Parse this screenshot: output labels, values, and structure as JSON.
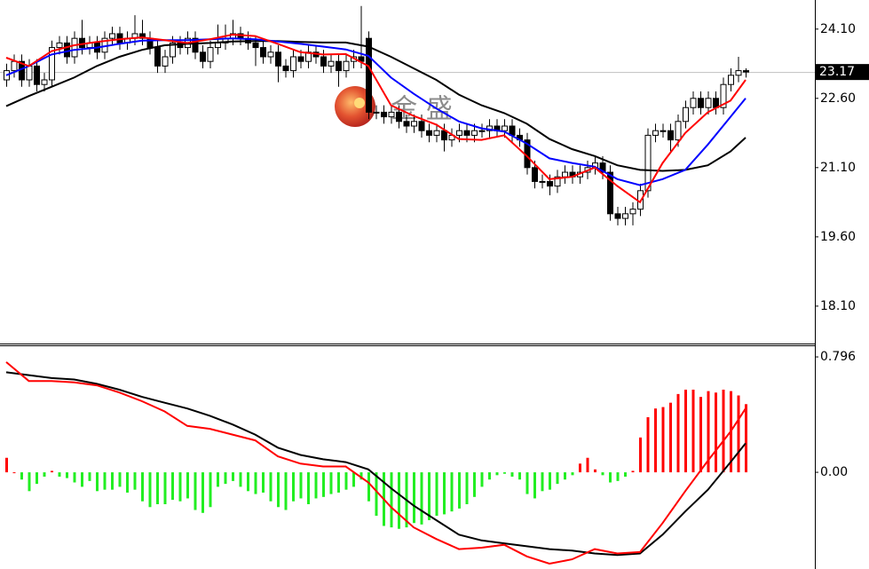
{
  "chart_data": [
    {
      "type": "candlestick",
      "watermark": "金 盛",
      "open": [
        23.0,
        23.2,
        23.4,
        23.0,
        23.3,
        22.9,
        23.0,
        23.7,
        23.8,
        23.5,
        23.9,
        23.7,
        23.8,
        23.6,
        23.9,
        24.0,
        23.8,
        23.9,
        24.0,
        23.9,
        23.7,
        23.3,
        23.5,
        23.8,
        23.7,
        23.9,
        23.6,
        23.4,
        23.7,
        23.8,
        23.9,
        24.0,
        23.9,
        23.8,
        23.7,
        23.5,
        23.6,
        23.3,
        23.2,
        23.5,
        23.4,
        23.6,
        23.5,
        23.3,
        23.4,
        23.2,
        23.4,
        23.5,
        23.9,
        22.3,
        22.3,
        22.2,
        22.3,
        22.1,
        22.0,
        22.1,
        21.9,
        21.8,
        21.9,
        21.7,
        21.8,
        21.9,
        21.8,
        21.9,
        21.9,
        22.0,
        21.9,
        22.0,
        21.8,
        21.7,
        21.1,
        20.8,
        20.8,
        20.7,
        20.9,
        21.0,
        20.9,
        21.0,
        21.1,
        21.2,
        21.0,
        20.1,
        20.0,
        20.1,
        20.2,
        20.6,
        21.8,
        21.9,
        21.9,
        21.7,
        22.1,
        22.4,
        22.6,
        22.4,
        22.6,
        22.4,
        22.9,
        23.1,
        23.2
      ],
      "high": [
        23.35,
        23.55,
        23.55,
        23.45,
        23.45,
        23.15,
        23.85,
        23.95,
        23.95,
        24.05,
        24.3,
        23.95,
        23.95,
        24.05,
        24.15,
        24.15,
        24.05,
        24.4,
        24.3,
        24.05,
        23.85,
        23.65,
        23.95,
        23.95,
        24.05,
        24.05,
        23.75,
        23.85,
        24.2,
        24.2,
        24.3,
        24.15,
        24.05,
        23.95,
        23.85,
        23.75,
        23.75,
        23.45,
        23.65,
        23.65,
        23.75,
        23.75,
        23.65,
        23.55,
        23.55,
        23.55,
        23.65,
        24.6,
        24.05,
        22.45,
        22.45,
        22.45,
        22.45,
        22.25,
        22.25,
        22.25,
        22.05,
        22.05,
        22.05,
        21.95,
        22.05,
        22.05,
        22.05,
        22.05,
        22.15,
        22.15,
        22.15,
        22.15,
        21.95,
        21.85,
        21.25,
        20.95,
        20.95,
        21.05,
        21.15,
        21.15,
        21.15,
        21.25,
        21.35,
        21.35,
        21.15,
        20.25,
        20.25,
        20.35,
        20.75,
        21.95,
        22.05,
        22.05,
        22.05,
        22.25,
        22.55,
        22.75,
        22.75,
        22.75,
        22.75,
        23.05,
        23.25,
        23.5,
        23.25
      ],
      "low": [
        22.85,
        23.05,
        22.85,
        22.85,
        22.75,
        22.75,
        22.85,
        23.55,
        23.35,
        23.35,
        23.55,
        23.55,
        23.45,
        23.45,
        23.75,
        23.65,
        23.65,
        23.75,
        23.75,
        23.55,
        23.15,
        23.15,
        23.35,
        23.55,
        23.55,
        23.45,
        23.25,
        23.25,
        23.55,
        23.65,
        23.75,
        23.75,
        23.65,
        23.3,
        23.35,
        23.35,
        22.95,
        23.05,
        23.05,
        23.25,
        23.25,
        23.35,
        23.15,
        23.15,
        22.85,
        23.05,
        23.25,
        23.25,
        22.15,
        22.15,
        22.05,
        22.05,
        21.95,
        21.85,
        21.85,
        21.75,
        21.65,
        21.65,
        21.45,
        21.55,
        21.65,
        21.65,
        21.65,
        21.75,
        21.75,
        21.75,
        21.75,
        21.65,
        21.55,
        20.95,
        20.65,
        20.65,
        20.5,
        20.55,
        20.75,
        20.75,
        20.75,
        20.85,
        20.95,
        20.85,
        19.95,
        19.85,
        19.85,
        19.85,
        20.05,
        20.45,
        21.65,
        21.75,
        21.45,
        21.55,
        21.95,
        22.25,
        22.25,
        22.25,
        22.25,
        22.25,
        22.75,
        22.95,
        23.05
      ],
      "close": [
        23.2,
        23.4,
        23.0,
        23.3,
        22.9,
        23.0,
        23.7,
        23.8,
        23.5,
        23.9,
        23.7,
        23.8,
        23.6,
        23.9,
        24.0,
        23.8,
        23.9,
        24.0,
        23.9,
        23.7,
        23.3,
        23.5,
        23.8,
        23.7,
        23.9,
        23.6,
        23.4,
        23.7,
        23.8,
        23.9,
        24.0,
        23.9,
        23.8,
        23.7,
        23.5,
        23.6,
        23.3,
        23.2,
        23.5,
        23.4,
        23.6,
        23.5,
        23.3,
        23.4,
        23.2,
        23.4,
        23.5,
        23.4,
        22.3,
        22.3,
        22.2,
        22.3,
        22.1,
        22.0,
        22.1,
        21.9,
        21.8,
        21.9,
        21.7,
        21.8,
        21.9,
        21.8,
        21.9,
        21.9,
        22.0,
        21.9,
        22.0,
        21.8,
        21.7,
        21.1,
        20.8,
        20.8,
        20.7,
        20.9,
        21.0,
        20.9,
        21.0,
        21.1,
        21.2,
        21.0,
        20.1,
        20.0,
        20.1,
        20.2,
        20.6,
        21.8,
        21.9,
        21.9,
        21.7,
        22.1,
        22.4,
        22.6,
        22.4,
        22.6,
        22.4,
        22.9,
        23.1,
        23.2,
        23.17
      ],
      "up_color": "#ffffff",
      "down_color": "#000000",
      "line_x": [
        0,
        3,
        6,
        9,
        12,
        15,
        18,
        21,
        24,
        27,
        30,
        33,
        36,
        39,
        42,
        45,
        48,
        51,
        54,
        57,
        60,
        63,
        66,
        69,
        72,
        75,
        78,
        81,
        84,
        87,
        90,
        93,
        96,
        98
      ],
      "series": [
        {
          "color": "#000000",
          "values": [
            22.43,
            22.65,
            22.85,
            23.05,
            23.3,
            23.5,
            23.65,
            23.75,
            23.78,
            23.8,
            23.83,
            23.84,
            23.84,
            23.82,
            23.81,
            23.81,
            23.72,
            23.5,
            23.25,
            23.0,
            22.68,
            22.45,
            22.28,
            22.05,
            21.72,
            21.5,
            21.35,
            21.15,
            21.05,
            21.03,
            21.05,
            21.15,
            21.45,
            21.75
          ]
        },
        {
          "color": "#0000ff",
          "values": [
            23.1,
            23.3,
            23.55,
            23.65,
            23.7,
            23.78,
            23.85,
            23.86,
            23.86,
            23.88,
            23.9,
            23.88,
            23.83,
            23.78,
            23.72,
            23.66,
            23.52,
            23.05,
            22.7,
            22.38,
            22.1,
            21.95,
            21.88,
            21.62,
            21.3,
            21.2,
            21.12,
            20.85,
            20.72,
            20.85,
            21.05,
            21.6,
            22.2,
            22.6
          ]
        },
        {
          "color": "#ff0000",
          "values": [
            23.48,
            23.3,
            23.62,
            23.75,
            23.82,
            23.88,
            23.92,
            23.86,
            23.8,
            23.88,
            23.98,
            23.95,
            23.78,
            23.6,
            23.55,
            23.56,
            23.3,
            22.45,
            22.22,
            22.03,
            21.72,
            21.7,
            21.8,
            21.35,
            20.85,
            20.9,
            21.1,
            20.7,
            20.35,
            21.2,
            21.85,
            22.3,
            22.55,
            23.0
          ]
        }
      ],
      "ylim": [
        17.29,
        24.73
      ],
      "yticks": [
        {
          "value": 24.1,
          "label": "24.10"
        },
        {
          "value": 22.6,
          "label": "22.60"
        },
        {
          "value": 21.1,
          "label": "21.10"
        },
        {
          "value": 19.6,
          "label": "19.60"
        },
        {
          "value": 18.1,
          "label": "18.10"
        }
      ],
      "current_price": {
        "value": 23.17,
        "label": "23.17"
      }
    },
    {
      "type": "macd",
      "histogram": [
        0.1,
        0,
        -0.05,
        -0.13,
        -0.08,
        -0.03,
        0.01,
        -0.03,
        -0.04,
        -0.07,
        -0.1,
        -0.06,
        -0.13,
        -0.12,
        -0.12,
        -0.1,
        -0.14,
        -0.12,
        -0.2,
        -0.24,
        -0.22,
        -0.22,
        -0.19,
        -0.2,
        -0.18,
        -0.26,
        -0.28,
        -0.24,
        -0.1,
        -0.08,
        -0.06,
        -0.1,
        -0.13,
        -0.15,
        -0.14,
        -0.2,
        -0.24,
        -0.26,
        -0.2,
        -0.18,
        -0.22,
        -0.18,
        -0.17,
        -0.15,
        -0.14,
        -0.12,
        -0.1,
        -0.05,
        -0.2,
        -0.3,
        -0.37,
        -0.38,
        -0.39,
        -0.38,
        -0.35,
        -0.36,
        -0.33,
        -0.3,
        -0.29,
        -0.27,
        -0.25,
        -0.22,
        -0.17,
        -0.1,
        -0.05,
        -0.02,
        -0.01,
        -0.03,
        -0.05,
        -0.15,
        -0.18,
        -0.13,
        -0.12,
        -0.08,
        -0.05,
        -0.02,
        0.06,
        0.1,
        0.02,
        -0.02,
        -0.07,
        -0.06,
        -0.03,
        0.01,
        0.24,
        0.38,
        0.44,
        0.45,
        0.48,
        0.54,
        0.57,
        0.57,
        0.52,
        0.56,
        0.55,
        0.57,
        0.56,
        0.53,
        0.47
      ],
      "positive_color": "#ff0000",
      "negative_color": "#22ee22",
      "line_x": [
        0,
        3,
        6,
        9,
        12,
        15,
        18,
        21,
        24,
        27,
        30,
        33,
        36,
        39,
        42,
        45,
        48,
        51,
        54,
        57,
        60,
        63,
        66,
        69,
        72,
        75,
        78,
        81,
        84,
        87,
        90,
        93,
        96,
        98
      ],
      "series": [
        {
          "color": "#000000",
          "values": [
            0.69,
            0.67,
            0.65,
            0.64,
            0.61,
            0.57,
            0.52,
            0.48,
            0.44,
            0.39,
            0.33,
            0.26,
            0.17,
            0.12,
            0.09,
            0.07,
            0.02,
            -0.11,
            -0.23,
            -0.33,
            -0.43,
            -0.47,
            -0.49,
            -0.51,
            -0.53,
            -0.54,
            -0.56,
            -0.57,
            -0.56,
            -0.43,
            -0.27,
            -0.12,
            0.07,
            0.2
          ]
        },
        {
          "color": "#ff0000",
          "values": [
            0.76,
            0.63,
            0.63,
            0.62,
            0.6,
            0.55,
            0.49,
            0.42,
            0.32,
            0.3,
            0.26,
            0.22,
            0.11,
            0.06,
            0.04,
            0.04,
            -0.07,
            -0.24,
            -0.38,
            -0.46,
            -0.53,
            -0.52,
            -0.5,
            -0.58,
            -0.63,
            -0.6,
            -0.53,
            -0.56,
            -0.55,
            -0.35,
            -0.13,
            0.08,
            0.28,
            0.44
          ]
        }
      ],
      "ylim": [
        -0.667,
        0.876
      ],
      "yticks": [
        0.796,
        {
          "value": 0,
          "label": "0.00"
        }
      ]
    }
  ]
}
